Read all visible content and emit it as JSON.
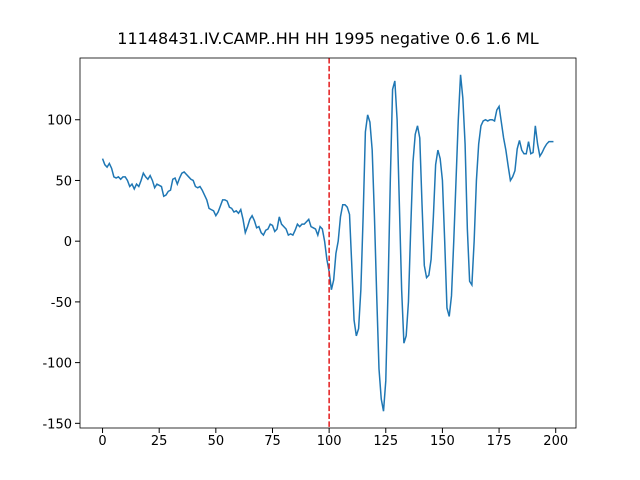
{
  "chart_data": {
    "type": "line",
    "title": "11148431.IV.CAMP..HH HH 1995 negative 0.6 1.6 ML",
    "x": [
      0,
      1,
      2,
      3,
      4,
      5,
      6,
      7,
      8,
      9,
      10,
      11,
      12,
      13,
      14,
      15,
      16,
      17,
      18,
      19,
      20,
      21,
      22,
      23,
      24,
      25,
      26,
      27,
      28,
      29,
      30,
      31,
      32,
      33,
      34,
      35,
      36,
      37,
      38,
      39,
      40,
      41,
      42,
      43,
      44,
      45,
      46,
      47,
      48,
      49,
      50,
      51,
      52,
      53,
      54,
      55,
      56,
      57,
      58,
      59,
      60,
      61,
      62,
      63,
      64,
      65,
      66,
      67,
      68,
      69,
      70,
      71,
      72,
      73,
      74,
      75,
      76,
      77,
      78,
      79,
      80,
      81,
      82,
      83,
      84,
      85,
      86,
      87,
      88,
      89,
      90,
      91,
      92,
      93,
      94,
      95,
      96,
      97,
      98,
      99,
      100,
      101,
      102,
      103,
      104,
      105,
      106,
      107,
      108,
      109,
      110,
      111,
      112,
      113,
      114,
      115,
      116,
      117,
      118,
      119,
      120,
      121,
      122,
      123,
      124,
      125,
      126,
      127,
      128,
      129,
      130,
      131,
      132,
      133,
      134,
      135,
      136,
      137,
      138,
      139,
      140,
      141,
      142,
      143,
      144,
      145,
      146,
      147,
      148,
      149,
      150,
      151,
      152,
      153,
      154,
      155,
      156,
      157,
      158,
      159,
      160,
      161,
      162,
      163,
      164,
      165,
      166,
      167,
      168,
      169,
      170,
      171,
      172,
      173,
      174,
      175,
      176,
      177,
      178,
      179,
      180,
      181,
      182,
      183,
      184,
      185,
      186,
      187,
      188,
      189,
      190,
      191,
      192,
      193,
      194,
      195,
      196,
      197,
      198,
      199
    ],
    "series": [
      {
        "color": "#1f77b4",
        "values": [
          68,
          63,
          61,
          64,
          60,
          53,
          52,
          53,
          51,
          53,
          53,
          50,
          45,
          47,
          43,
          47,
          45,
          50,
          56,
          53,
          51,
          54,
          50,
          44,
          47,
          46,
          45,
          37,
          38,
          41,
          42,
          51,
          52,
          47,
          52,
          56,
          57,
          55,
          53,
          51,
          50,
          45,
          44,
          45,
          42,
          38,
          34,
          27,
          26,
          25,
          21,
          24,
          29,
          34,
          34,
          33,
          28,
          27,
          24,
          25,
          23,
          26,
          18,
          7,
          12,
          18,
          21,
          17,
          11,
          12,
          7,
          5,
          9,
          10,
          14,
          13,
          8,
          10,
          20,
          14,
          12,
          10,
          5,
          6,
          5,
          9,
          14,
          12,
          14,
          14,
          16,
          18,
          12,
          11,
          10,
          5,
          12,
          10,
          0,
          -15,
          -25,
          -40,
          -32,
          -10,
          0,
          20,
          30,
          30,
          28,
          22,
          -20,
          -65,
          -78,
          -72,
          -40,
          20,
          90,
          104,
          98,
          75,
          20,
          -45,
          -105,
          -130,
          -140,
          -115,
          -40,
          50,
          125,
          132,
          100,
          30,
          -40,
          -84,
          -78,
          -50,
          10,
          65,
          88,
          95,
          85,
          30,
          -20,
          -30,
          -28,
          -15,
          20,
          63,
          75,
          68,
          50,
          0,
          -55,
          -62,
          -45,
          0,
          50,
          100,
          137,
          118,
          80,
          10,
          -33,
          -36,
          0,
          50,
          80,
          95,
          99,
          100,
          99,
          100,
          100,
          99,
          108,
          111,
          98,
          85,
          75,
          62,
          50,
          53,
          58,
          76,
          83,
          75,
          72,
          72,
          82,
          72,
          73,
          95,
          80,
          70,
          73,
          77,
          80,
          82,
          82,
          82
        ]
      }
    ],
    "vline": {
      "x": 100,
      "color": "#e31a1c",
      "style": "dashed"
    },
    "xlim": [
      -9.95,
      208.95
    ],
    "xticks": [
      0,
      25,
      50,
      75,
      100,
      125,
      150,
      175,
      200
    ],
    "ylim": [
      -153.85,
      150.85
    ],
    "yticks": [
      -150,
      -100,
      -50,
      0,
      50,
      100
    ]
  }
}
